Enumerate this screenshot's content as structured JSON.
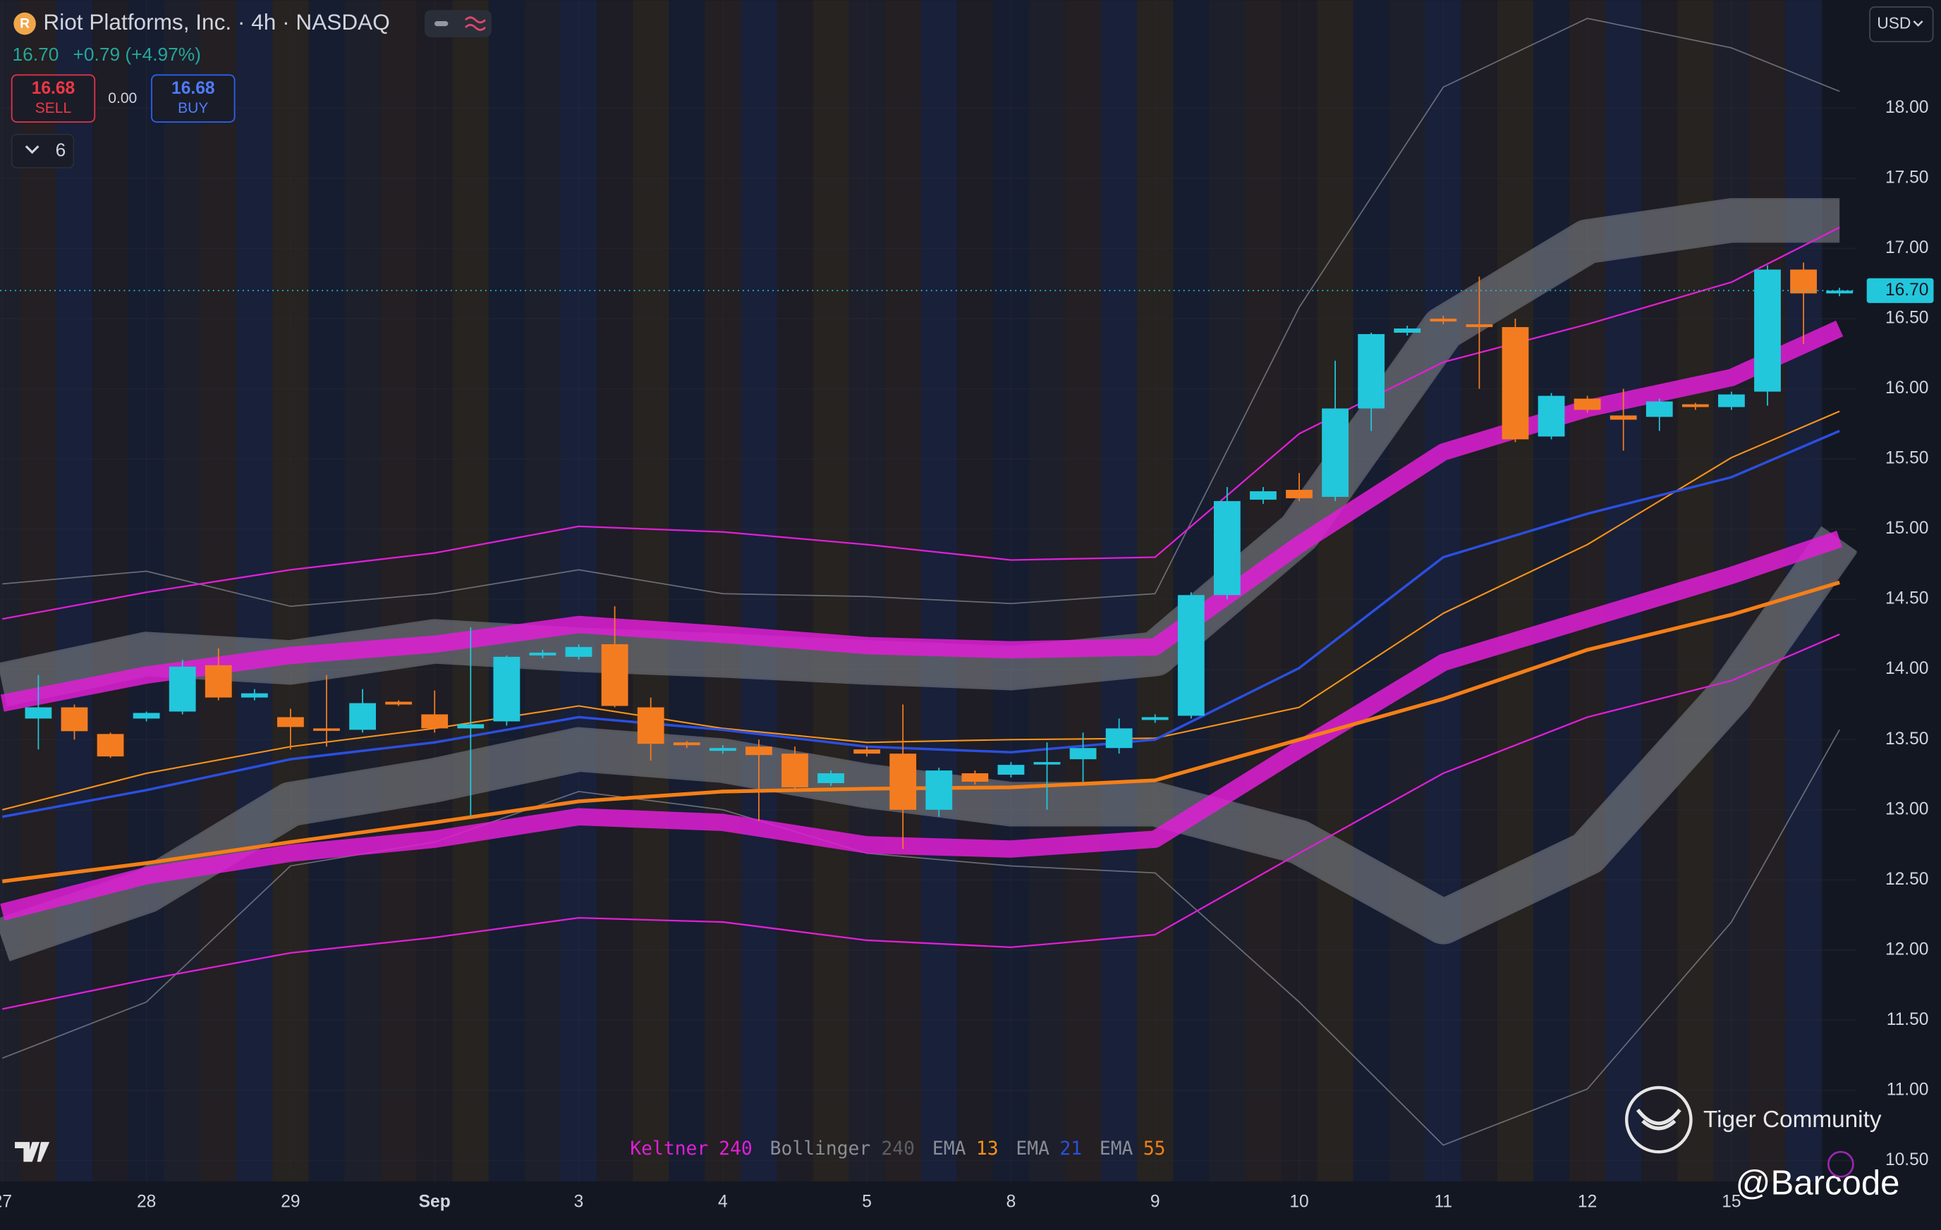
{
  "chart_data": {
    "type": "candlestick",
    "title": "Riot Platforms, Inc. · 4h · NASDAQ",
    "currency": "USD",
    "quote": {
      "last": "16.70",
      "change": "+0.79 (+4.97%)",
      "sell": "16.68",
      "sell_label": "SELL",
      "spread": "0.00",
      "buy": "16.68",
      "buy_label": "BUY",
      "indicator_count": "6"
    },
    "up_color": "#22c7dc",
    "down_color": "#f47c20",
    "grid": true,
    "x": [
      0,
      1,
      2,
      3,
      4,
      5,
      6,
      7,
      8,
      9,
      10,
      11,
      12,
      13,
      14,
      15,
      16,
      17,
      18,
      19,
      20,
      21,
      22,
      23,
      24,
      25,
      26,
      27,
      28,
      29,
      30,
      31,
      32,
      33,
      34,
      35,
      36,
      37,
      38,
      39,
      40,
      41,
      42,
      43,
      44,
      45,
      46,
      47,
      48,
      49,
      50
    ],
    "open": [
      13.65,
      13.73,
      13.54,
      13.65,
      13.7,
      14.03,
      13.8,
      13.66,
      13.58,
      13.57,
      13.77,
      13.68,
      13.58,
      13.63,
      14.1,
      14.09,
      14.18,
      13.73,
      13.48,
      13.42,
      13.45,
      13.4,
      13.19,
      13.43,
      13.4,
      13.0,
      13.26,
      13.25,
      13.33,
      13.36,
      13.44,
      13.64,
      13.67,
      14.53,
      15.21,
      15.28,
      15.23,
      15.86,
      16.4,
      16.5,
      16.46,
      16.44,
      15.66,
      15.93,
      15.81,
      15.8,
      15.89,
      15.87,
      15.98,
      16.85,
      16.68
    ],
    "high": [
      13.96,
      13.75,
      13.55,
      13.7,
      14.07,
      14.15,
      13.86,
      13.72,
      13.96,
      13.86,
      13.78,
      13.85,
      14.3,
      14.1,
      14.14,
      14.18,
      14.45,
      13.8,
      13.49,
      13.46,
      13.5,
      13.45,
      13.28,
      13.45,
      13.75,
      13.3,
      13.28,
      13.34,
      13.48,
      13.55,
      13.65,
      13.68,
      14.55,
      15.3,
      15.3,
      15.4,
      16.2,
      16.4,
      16.45,
      16.52,
      16.8,
      16.5,
      15.97,
      15.95,
      16.0,
      15.93,
      15.9,
      15.98,
      16.88,
      16.9,
      16.72
    ],
    "low": [
      13.43,
      13.5,
      13.37,
      13.63,
      13.68,
      13.78,
      13.78,
      13.43,
      13.45,
      13.55,
      13.74,
      13.55,
      12.95,
      13.6,
      14.08,
      14.07,
      13.73,
      13.35,
      13.44,
      13.4,
      12.92,
      13.13,
      13.17,
      13.38,
      12.72,
      12.95,
      13.18,
      13.23,
      13.0,
      13.2,
      13.4,
      13.62,
      13.65,
      14.5,
      15.18,
      15.2,
      15.2,
      15.7,
      16.38,
      16.46,
      16.0,
      15.62,
      15.64,
      15.83,
      15.56,
      15.7,
      15.85,
      15.85,
      15.88,
      16.32,
      16.66
    ],
    "close": [
      13.73,
      13.56,
      13.38,
      13.69,
      14.02,
      13.8,
      13.83,
      13.59,
      13.57,
      13.76,
      13.75,
      13.58,
      13.61,
      14.09,
      14.12,
      14.16,
      13.74,
      13.47,
      13.46,
      13.44,
      13.39,
      13.16,
      13.26,
      13.4,
      13.0,
      13.28,
      13.2,
      13.32,
      13.34,
      13.44,
      13.58,
      13.66,
      14.53,
      15.2,
      15.27,
      15.22,
      15.86,
      16.39,
      16.43,
      16.48,
      16.44,
      15.64,
      15.95,
      15.85,
      15.78,
      15.91,
      15.87,
      15.96,
      16.85,
      16.68,
      16.7
    ],
    "last_price": {
      "value": 16.7,
      "label": "16.70"
    },
    "xlim": [
      -1.065,
      50.48
    ],
    "xticks": [
      {
        "value": -1,
        "label": "27"
      },
      {
        "value": 3,
        "label": "28"
      },
      {
        "value": 7,
        "label": "29"
      },
      {
        "value": 11,
        "label": "Sep"
      },
      {
        "value": 15,
        "label": "3"
      },
      {
        "value": 19,
        "label": "4"
      },
      {
        "value": 23,
        "label": "5"
      },
      {
        "value": 27,
        "label": "8"
      },
      {
        "value": 31,
        "label": "9"
      },
      {
        "value": 35,
        "label": "10"
      },
      {
        "value": 39,
        "label": "11"
      },
      {
        "value": 43,
        "label": "12"
      },
      {
        "value": 47,
        "label": "15"
      }
    ],
    "ylim": [
      10.35,
      18.77
    ],
    "yticks": [
      {
        "value": 10.5,
        "label": "10.50"
      },
      {
        "value": 11,
        "label": "11.00"
      },
      {
        "value": 11.5,
        "label": "11.50"
      },
      {
        "value": 12,
        "label": "12.00"
      },
      {
        "value": 12.5,
        "label": "12.50"
      },
      {
        "value": 13,
        "label": "13.00"
      },
      {
        "value": 13.5,
        "label": "13.50"
      },
      {
        "value": 14,
        "label": "14.00"
      },
      {
        "value": 14.5,
        "label": "14.50"
      },
      {
        "value": 15,
        "label": "15.00"
      },
      {
        "value": 15.5,
        "label": "15.50"
      },
      {
        "value": 16,
        "label": "16.00"
      },
      {
        "value": 16.5,
        "label": "16.50"
      },
      {
        "value": 17,
        "label": "17.00"
      },
      {
        "value": 17.5,
        "label": "17.50"
      },
      {
        "value": 18,
        "label": "18.00"
      }
    ],
    "indicators": [
      {
        "name": "Bollinger",
        "length": 240,
        "color": "#8a8d96",
        "x": [
          -1,
          3,
          7,
          11,
          15,
          19,
          23,
          27,
          31,
          35,
          39,
          43,
          47,
          50
        ],
        "lines": [
          [
            14.61,
            14.7,
            14.45,
            14.54,
            14.71,
            14.54,
            14.52,
            14.47,
            14.54,
            16.58,
            18.15,
            18.64,
            18.43,
            18.12
          ],
          [
            13.89,
            14.11,
            14.05,
            14.2,
            14.14,
            14.1,
            14.05,
            14.01,
            14.11,
            14.98,
            16.43,
            17.05,
            17.2,
            17.2
          ],
          [
            12.07,
            12.42,
            13.04,
            13.21,
            13.43,
            13.35,
            13.17,
            13.04,
            13.04,
            12.77,
            12.2,
            12.69,
            13.83,
            14.93
          ],
          [
            11.23,
            11.63,
            12.6,
            12.77,
            13.13,
            13.0,
            12.69,
            12.6,
            12.55,
            11.63,
            10.61,
            11.01,
            12.2,
            13.57
          ]
        ]
      },
      {
        "name": "Keltner",
        "length": 240,
        "color": "#e01fd6",
        "x": [
          -1,
          3,
          7,
          11,
          15,
          19,
          23,
          27,
          31,
          35,
          39,
          43,
          47,
          50
        ],
        "lines": [
          [
            14.36,
            14.55,
            14.71,
            14.83,
            15.02,
            14.98,
            14.89,
            14.78,
            14.8,
            15.68,
            16.19,
            16.46,
            16.76,
            17.15
          ],
          [
            13.76,
            13.96,
            14.1,
            14.18,
            14.32,
            14.25,
            14.17,
            14.14,
            14.16,
            14.89,
            15.55,
            15.86,
            16.08,
            16.43
          ],
          [
            12.27,
            12.53,
            12.69,
            12.79,
            12.95,
            12.91,
            12.75,
            12.72,
            12.79,
            13.43,
            14.05,
            14.36,
            14.67,
            14.93
          ],
          [
            11.58,
            11.79,
            11.98,
            12.09,
            12.23,
            12.2,
            12.07,
            12.02,
            12.11,
            12.69,
            13.26,
            13.66,
            13.92,
            14.25
          ]
        ]
      },
      {
        "name": "EMA",
        "length": 13,
        "color": "#f7931a",
        "x": [
          -1,
          3,
          7,
          11,
          15,
          19,
          23,
          27,
          31,
          35,
          39,
          43,
          47,
          50
        ],
        "lines": [
          [
            13.0,
            13.26,
            13.45,
            13.58,
            13.74,
            13.58,
            13.48,
            13.5,
            13.51,
            13.73,
            14.4,
            14.89,
            15.51,
            15.84
          ]
        ]
      },
      {
        "name": "EMA",
        "length": 21,
        "color": "#2b4fe0",
        "x": [
          -1,
          3,
          7,
          11,
          15,
          19,
          23,
          27,
          31,
          35,
          39,
          43,
          47,
          50
        ],
        "lines": [
          [
            12.95,
            13.14,
            13.36,
            13.48,
            13.66,
            13.57,
            13.45,
            13.41,
            13.5,
            14.01,
            14.8,
            15.11,
            15.37,
            15.7
          ]
        ]
      },
      {
        "name": "EMA",
        "length": 55,
        "color": "#f57f17",
        "x": [
          -1,
          3,
          7,
          11,
          15,
          19,
          23,
          27,
          31,
          35,
          39,
          43,
          47,
          50
        ],
        "lines": [
          [
            12.49,
            12.62,
            12.77,
            12.91,
            13.06,
            13.13,
            13.15,
            13.16,
            13.21,
            13.5,
            13.79,
            14.14,
            14.39,
            14.62
          ]
        ]
      }
    ],
    "watermark": "Tiger Community",
    "credit": "@Barcode"
  }
}
